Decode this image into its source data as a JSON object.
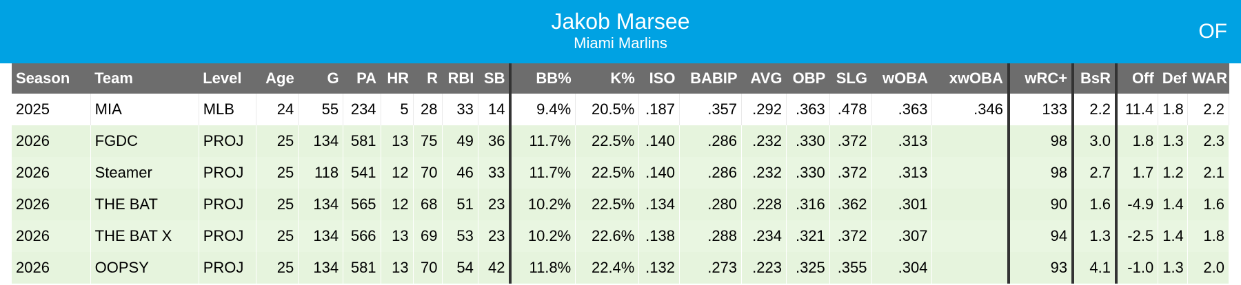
{
  "header": {
    "player_name": "Jakob Marsee",
    "team_name": "Miami Marlins",
    "position": "OF",
    "background_color": "#00a2e3"
  },
  "table": {
    "columns": [
      "Season",
      "Team",
      "Level",
      "Age",
      "G",
      "PA",
      "HR",
      "R",
      "RBI",
      "SB",
      "BB%",
      "K%",
      "ISO",
      "BABIP",
      "AVG",
      "OBP",
      "SLG",
      "wOBA",
      "xwOBA",
      "wRC+",
      "BsR",
      "Off",
      "Def",
      "WAR"
    ],
    "rows": [
      [
        "2025",
        "MIA",
        "MLB",
        "24",
        "55",
        "234",
        "5",
        "28",
        "33",
        "14",
        "9.4%",
        "20.5%",
        ".187",
        ".357",
        ".292",
        ".363",
        ".478",
        ".363",
        ".346",
        "133",
        "2.2",
        "11.4",
        "1.8",
        "2.2"
      ],
      [
        "2026",
        "FGDC",
        "PROJ",
        "25",
        "134",
        "581",
        "13",
        "75",
        "49",
        "36",
        "11.7%",
        "22.5%",
        ".140",
        ".286",
        ".232",
        ".330",
        ".372",
        ".313",
        "",
        "98",
        "3.0",
        "1.8",
        "1.3",
        "2.3"
      ],
      [
        "2026",
        "Steamer",
        "PROJ",
        "25",
        "118",
        "541",
        "12",
        "70",
        "46",
        "33",
        "11.7%",
        "22.5%",
        ".140",
        ".286",
        ".232",
        ".330",
        ".372",
        ".313",
        "",
        "98",
        "2.7",
        "1.7",
        "1.2",
        "2.1"
      ],
      [
        "2026",
        "THE BAT",
        "PROJ",
        "25",
        "134",
        "565",
        "12",
        "68",
        "51",
        "23",
        "10.2%",
        "22.5%",
        ".134",
        ".280",
        ".228",
        ".316",
        ".362",
        ".301",
        "",
        "90",
        "1.6",
        "-4.9",
        "1.4",
        "1.6"
      ],
      [
        "2026",
        "THE BAT X",
        "PROJ",
        "25",
        "134",
        "566",
        "13",
        "69",
        "53",
        "23",
        "10.2%",
        "22.6%",
        ".138",
        ".288",
        ".234",
        ".321",
        ".372",
        ".307",
        "",
        "94",
        "1.3",
        "-2.5",
        "1.4",
        "1.8"
      ],
      [
        "2026",
        "OOPSY",
        "PROJ",
        "25",
        "134",
        "581",
        "13",
        "70",
        "54",
        "42",
        "11.8%",
        "22.4%",
        ".132",
        ".273",
        ".223",
        ".325",
        ".355",
        ".304",
        "",
        "93",
        "4.1",
        "-1.0",
        "1.3",
        "2.0"
      ]
    ]
  }
}
